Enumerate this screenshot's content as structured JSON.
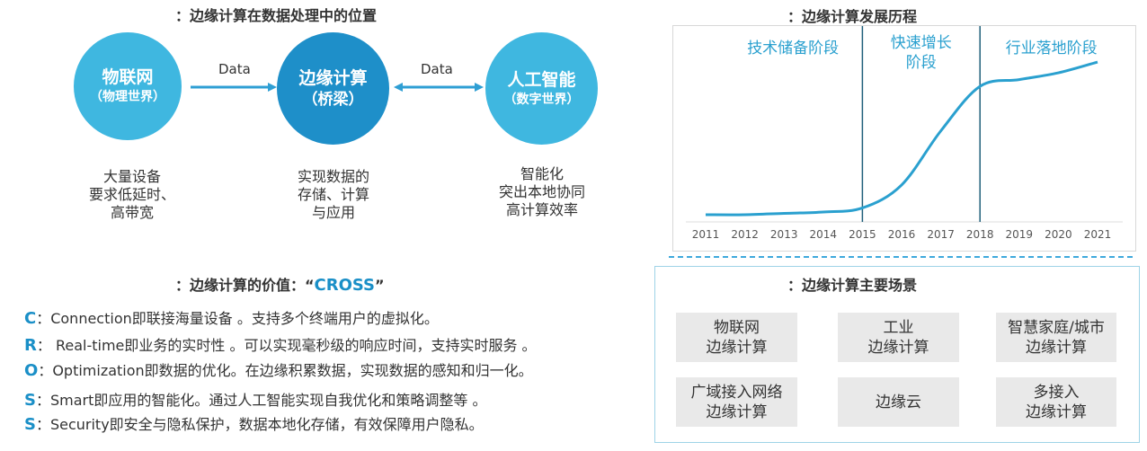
{
  "left_top": {
    "title": "：边缘计算在数据处理中的位置",
    "circles": [
      {
        "line1": "物联网",
        "line2": "（物理世界）",
        "color": "#3fb7e0"
      },
      {
        "line1": "边缘计算",
        "line2": "（桥梁）",
        "color": "#1e8fc9"
      },
      {
        "line1": "人工智能",
        "line2": "（数字世界）",
        "color": "#3fb7e0"
      }
    ],
    "arrows": [
      {
        "label": "Data"
      },
      {
        "label": "Data"
      }
    ],
    "descriptions": [
      {
        "lines": [
          "大量设备",
          "要求低延时、",
          "高带宽"
        ]
      },
      {
        "lines": [
          "实现数据的",
          "存储、计算",
          "与应用"
        ]
      },
      {
        "lines": [
          "智能化",
          "突出本地协同",
          "高计算效率"
        ]
      }
    ],
    "arrow_color": "#2f9fd4"
  },
  "left_bottom": {
    "title_prefix": "：边缘计算的价值：“",
    "title_highlight": "CROSS",
    "title_suffix": "”",
    "highlight_color": "#1a8fc7",
    "items": [
      {
        "letter": "C",
        "text": "：Connection即联接海量设备 。支持多个终端用户的虚拟化。"
      },
      {
        "letter": "R",
        "text": "： Real-time即业务的实时性 。可以实现毫秒级的响应时间，支持实时服务 。"
      },
      {
        "letter": "O",
        "text": "：Optimization即数据的优化。在边缘积累数据，实现数据的感知和归一化。"
      },
      {
        "letter": "S",
        "text": "：Smart即应用的智能化。通过人工智能实现自我优化和策略调整等 。"
      },
      {
        "letter": "S",
        "text": "：Security即安全与隐私保护，数据本地化存储，有效保障用户隐私。"
      }
    ]
  },
  "right_top": {
    "title": "：边缘计算发展历程",
    "chart_data": {
      "type": "line",
      "title": "",
      "xlabel": "",
      "ylabel": "",
      "x": [
        2011,
        2012,
        2013,
        2014,
        2015,
        2016,
        2017,
        2018,
        2019,
        2020,
        2021
      ],
      "tick_labels": [
        "2011",
        "2012",
        "2013",
        "2014",
        "2015",
        "2016",
        "2017",
        "2018",
        "2019",
        "2020",
        "2021"
      ],
      "values": [
        0.0,
        0.0,
        0.01,
        0.02,
        0.05,
        0.22,
        0.62,
        0.95,
        1.0,
        1.05,
        1.13
      ],
      "ylim": [
        0,
        1.25
      ],
      "grid": false,
      "line_color": "#2aa0cf",
      "divider_color": "#1f5f7a",
      "phase_boundaries": [
        2015,
        2018
      ],
      "phases": [
        {
          "label": "技术储备阶段"
        },
        {
          "label_line1": "快速增长",
          "label_line2": "阶段"
        },
        {
          "label": "行业落地阶段"
        }
      ]
    }
  },
  "right_bottom": {
    "title": "：边缘计算主要场景",
    "dash_color": "#3fa9dc",
    "scenes": [
      {
        "lines": [
          "物联网",
          "边缘计算"
        ]
      },
      {
        "lines": [
          "工业",
          "边缘计算"
        ]
      },
      {
        "lines": [
          "智慧家庭/城市",
          "边缘计算"
        ]
      },
      {
        "lines": [
          "广域接入网络",
          "边缘计算"
        ]
      },
      {
        "lines": [
          "边缘云"
        ]
      },
      {
        "lines": [
          "多接入",
          "边缘计算"
        ]
      }
    ]
  }
}
